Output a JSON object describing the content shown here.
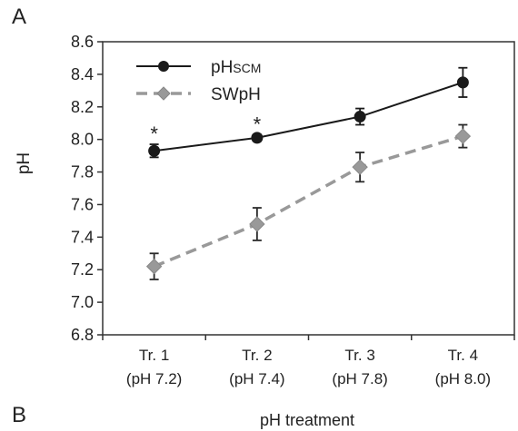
{
  "panel_labels": [
    "A",
    "B"
  ],
  "chart_data": {
    "type": "line",
    "title": "",
    "xlabel": "pH treatment",
    "ylabel": "pH",
    "ylim": [
      6.8,
      8.6
    ],
    "yticks": [
      "6.8",
      "7.0",
      "7.2",
      "7.4",
      "7.6",
      "7.8",
      "8.0",
      "8.2",
      "8.4",
      "8.6"
    ],
    "categories": [
      [
        "Tr. 1",
        "(pH 7.2)"
      ],
      [
        "Tr. 2",
        "(pH 7.4)"
      ],
      [
        "Tr. 3",
        "(pH 7.8)"
      ],
      [
        "Tr. 4",
        "(pH 8.0)"
      ]
    ],
    "series": [
      {
        "name": "pH",
        "name_subscript": "SCM",
        "values": [
          7.93,
          8.01,
          8.14,
          8.35
        ],
        "error": [
          0.04,
          0.02,
          0.05,
          0.09
        ],
        "marker": "circle",
        "line": "solid",
        "color": "#1a1a1a"
      },
      {
        "name": "SWpH",
        "name_subscript": "",
        "values": [
          7.22,
          7.48,
          7.83,
          8.02
        ],
        "error": [
          0.08,
          0.1,
          0.09,
          0.07
        ],
        "marker": "diamond",
        "line": "dashed",
        "color": "#999999"
      }
    ],
    "annotations": [
      {
        "text": "*",
        "category_index": 0,
        "series_index": 0
      },
      {
        "text": "*",
        "category_index": 1,
        "series_index": 0
      }
    ],
    "legend_position": "top-left",
    "grid": false
  }
}
